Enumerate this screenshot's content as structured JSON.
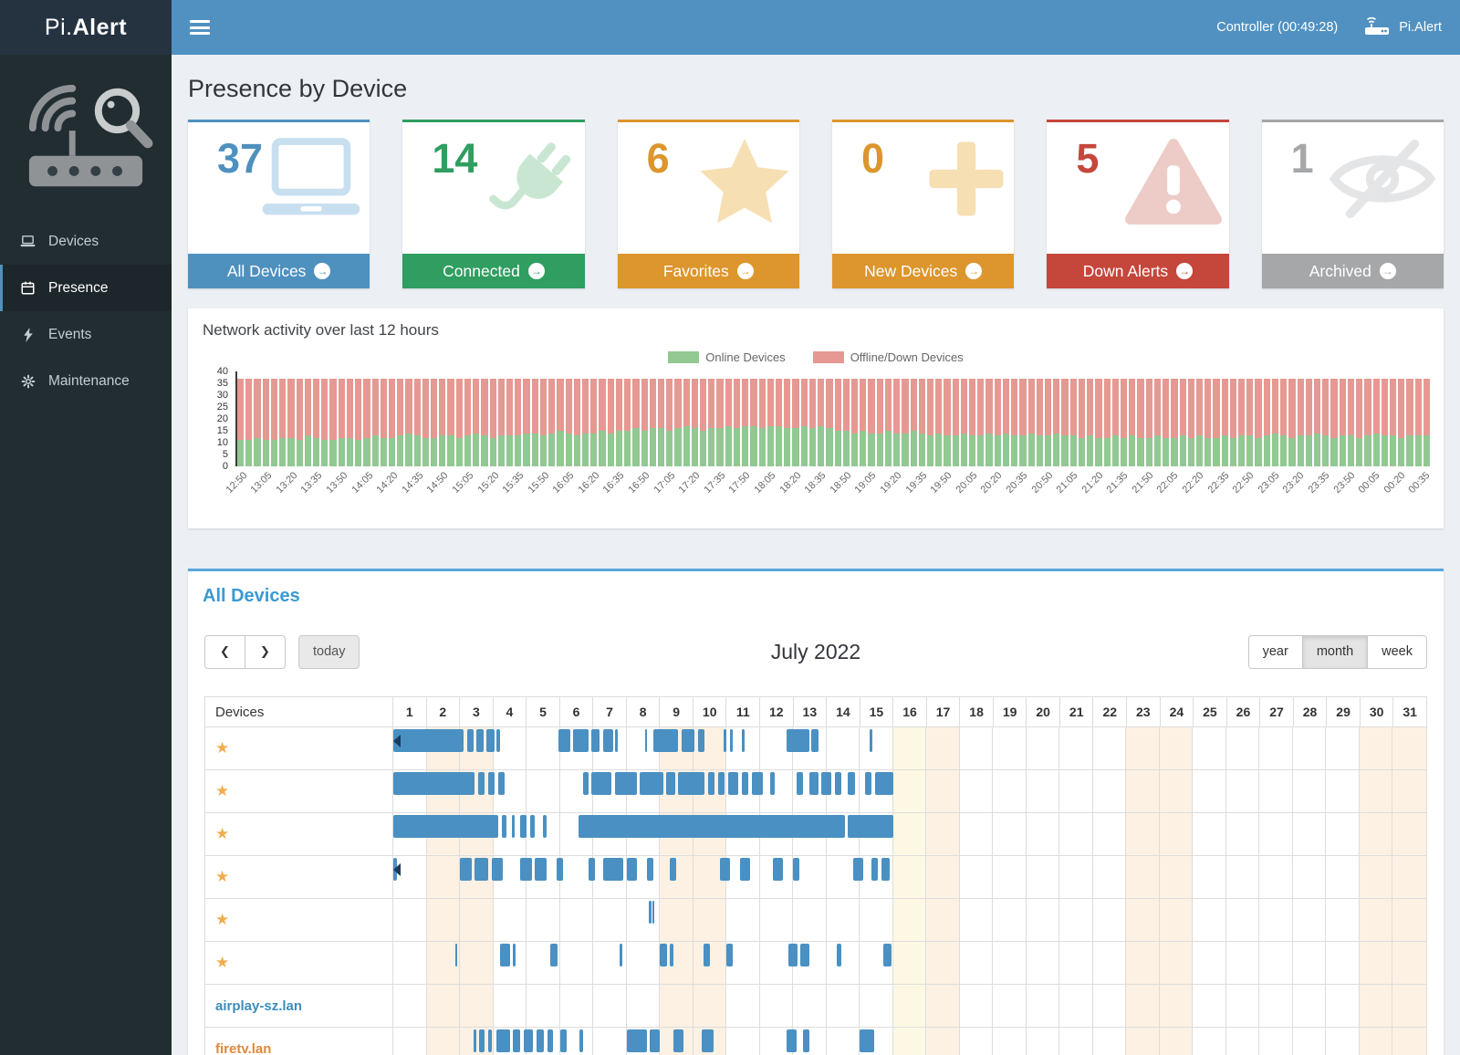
{
  "colors": {
    "header_blue": "#5191c1",
    "logo_dark": "#253341",
    "sidebar_dark": "#222d32",
    "accent_blue": "#4e90be",
    "panel_accent": "#58a6d8",
    "section_title_blue": "#3a9ad2",
    "link_blue": "#3c8dbc",
    "chart_online": "#92c892",
    "chart_offline": "#e59992",
    "weekend_bg": "#fdf1e3",
    "today_bg": "#fcf8e3",
    "presence_bar": "#4a90c2",
    "star_orange": "#f0ad4e"
  },
  "header": {
    "logo_prefix": "Pi.",
    "logo_suffix": "Alert",
    "controller_status": "Controller (00:49:28)",
    "brand": "Pi.Alert"
  },
  "sidebar": {
    "items": [
      {
        "label": "Devices",
        "icon": "laptop-icon",
        "active": false
      },
      {
        "label": "Presence",
        "icon": "calendar-icon",
        "active": true
      },
      {
        "label": "Events",
        "icon": "bolt-icon",
        "active": false
      },
      {
        "label": "Maintenance",
        "icon": "gear-icon",
        "active": false
      }
    ]
  },
  "page": {
    "title": "Presence by Device"
  },
  "cards": [
    {
      "value": "37",
      "label": "All Devices",
      "color": "#4e90be",
      "icon": "laptop-icon"
    },
    {
      "value": "14",
      "label": "Connected",
      "color": "#2f9e60",
      "icon": "plug-icon"
    },
    {
      "value": "6",
      "label": "Favorites",
      "color": "#dc962d",
      "icon": "star-icon"
    },
    {
      "value": "0",
      "label": "New Devices",
      "color": "#dc962d",
      "icon": "plus-icon"
    },
    {
      "value": "5",
      "label": "Down Alerts",
      "color": "#c5463a",
      "icon": "warning-icon"
    },
    {
      "value": "1",
      "label": "Archived",
      "color": "#a5a7a9",
      "icon": "eye-slash-icon"
    }
  ],
  "activity": {
    "title": "Network activity over last 12 hours",
    "chart_data": {
      "type": "bar",
      "stacked": true,
      "title": "Network activity over last 12 hours",
      "legend": [
        {
          "name": "Online Devices",
          "color": "#92c892"
        },
        {
          "name": "Offline/Down Devices",
          "color": "#e59992"
        }
      ],
      "ylim": [
        0,
        40
      ],
      "yticks": [
        0,
        5,
        10,
        15,
        20,
        25,
        30,
        35,
        40
      ],
      "interval_minutes": 5,
      "tick_interval_minutes": 15,
      "total_devices": 37,
      "tick_labels": [
        "12:50",
        "13:05",
        "13:20",
        "13:35",
        "13:50",
        "14:05",
        "14:20",
        "14:35",
        "14:50",
        "15:05",
        "15:20",
        "15:35",
        "15:50",
        "16:05",
        "16:20",
        "16:35",
        "16:50",
        "17:05",
        "17:20",
        "17:35",
        "17:50",
        "18:05",
        "18:20",
        "18:35",
        "18:50",
        "19:05",
        "19:20",
        "19:35",
        "19:50",
        "20:05",
        "20:20",
        "20:35",
        "20:50",
        "21:05",
        "21:20",
        "21:35",
        "21:50",
        "22:05",
        "22:20",
        "22:35",
        "22:50",
        "23:05",
        "23:20",
        "23:35",
        "23:50",
        "00:05",
        "00:20",
        "00:35"
      ],
      "series": [
        {
          "name": "Online Devices",
          "values": [
            11,
            11,
            12,
            11,
            11,
            12,
            12,
            11,
            13,
            12,
            11,
            11,
            12,
            12,
            11,
            12,
            13,
            12,
            12,
            13,
            14,
            13,
            12,
            12,
            13,
            13,
            12,
            13,
            14,
            13,
            12,
            13,
            13,
            13,
            14,
            14,
            13,
            14,
            15,
            14,
            13,
            14,
            14,
            15,
            14,
            15,
            15,
            16,
            15,
            16,
            16,
            15,
            16,
            17,
            16,
            15,
            16,
            16,
            17,
            16,
            17,
            17,
            16,
            17,
            17,
            16,
            16,
            17,
            16,
            17,
            16,
            15,
            15,
            14,
            15,
            14,
            14,
            15,
            14,
            14,
            15,
            14,
            13,
            14,
            13,
            13,
            14,
            13,
            13,
            14,
            13,
            14,
            13,
            13,
            14,
            13,
            13,
            14,
            13,
            13,
            12,
            13,
            12,
            12,
            13,
            12,
            13,
            12,
            12,
            13,
            12,
            12,
            13,
            12,
            13,
            12,
            12,
            13,
            12,
            13,
            13,
            12,
            13,
            14,
            13,
            12,
            13,
            13,
            14,
            13,
            12,
            13,
            13,
            12,
            13,
            14,
            13,
            13,
            12,
            13,
            13,
            13
          ]
        },
        {
          "name": "Offline/Down Devices",
          "values": [
            26,
            26,
            25,
            26,
            26,
            25,
            25,
            26,
            24,
            25,
            26,
            26,
            25,
            25,
            26,
            25,
            24,
            25,
            25,
            24,
            23,
            24,
            25,
            25,
            24,
            24,
            25,
            24,
            23,
            24,
            25,
            24,
            24,
            24,
            23,
            23,
            24,
            23,
            22,
            23,
            24,
            23,
            23,
            22,
            23,
            22,
            22,
            21,
            22,
            21,
            21,
            22,
            21,
            20,
            21,
            22,
            21,
            21,
            20,
            21,
            20,
            20,
            21,
            20,
            20,
            21,
            21,
            20,
            21,
            20,
            21,
            22,
            22,
            23,
            22,
            23,
            23,
            22,
            23,
            23,
            22,
            23,
            24,
            23,
            24,
            24,
            23,
            24,
            24,
            23,
            24,
            23,
            24,
            24,
            23,
            24,
            24,
            23,
            24,
            24,
            25,
            24,
            25,
            25,
            24,
            25,
            24,
            25,
            25,
            24,
            25,
            25,
            24,
            25,
            24,
            25,
            25,
            24,
            25,
            24,
            24,
            25,
            24,
            23,
            24,
            25,
            24,
            24,
            23,
            24,
            25,
            24,
            24,
            25,
            24,
            23,
            24,
            24,
            25,
            24,
            24,
            24
          ]
        }
      ]
    }
  },
  "calendar": {
    "section_title": "All Devices",
    "toolbar": {
      "prev_icon": "❮",
      "next_icon": "❯",
      "today": "today",
      "title": "July 2022",
      "views": [
        "year",
        "month",
        "week"
      ],
      "active_view": "month"
    },
    "table": {
      "devices_header": "Devices",
      "days": [
        1,
        2,
        3,
        4,
        5,
        6,
        7,
        8,
        9,
        10,
        11,
        12,
        13,
        14,
        15,
        16,
        17,
        18,
        19,
        20,
        21,
        22,
        23,
        24,
        25,
        26,
        27,
        28,
        29,
        30,
        31
      ],
      "weekend_days": [
        2,
        3,
        9,
        10,
        16,
        17,
        23,
        24,
        30,
        31
      ],
      "today_day": 16
    },
    "rows": [
      {
        "star": true,
        "name": "",
        "continues_before": true,
        "segments": [
          [
            1.0,
            3.1
          ],
          [
            3.22,
            3.42
          ],
          [
            3.5,
            3.72
          ],
          [
            3.8,
            4.05
          ],
          [
            4.1,
            4.2
          ],
          [
            5.95,
            6.3
          ],
          [
            6.4,
            6.85
          ],
          [
            6.95,
            7.2
          ],
          [
            7.3,
            7.6
          ],
          [
            7.65,
            7.75
          ],
          [
            8.55,
            8.62
          ],
          [
            8.8,
            9.55
          ],
          [
            9.65,
            10.05
          ],
          [
            10.15,
            10.35
          ],
          [
            10.9,
            11.0
          ],
          [
            11.1,
            11.2
          ],
          [
            11.45,
            11.55
          ],
          [
            12.8,
            13.5
          ],
          [
            13.55,
            13.75
          ],
          [
            15.3,
            15.38
          ]
        ]
      },
      {
        "star": true,
        "name": "",
        "continues_before": false,
        "segments": [
          [
            1.0,
            3.45
          ],
          [
            3.55,
            3.75
          ],
          [
            3.85,
            4.05
          ],
          [
            4.15,
            4.35
          ],
          [
            6.7,
            6.85
          ],
          [
            6.95,
            7.55
          ],
          [
            7.65,
            8.3
          ],
          [
            8.4,
            9.1
          ],
          [
            9.2,
            9.45
          ],
          [
            9.55,
            10.35
          ],
          [
            10.45,
            10.65
          ],
          [
            10.75,
            10.95
          ],
          [
            11.05,
            11.35
          ],
          [
            11.45,
            11.65
          ],
          [
            11.75,
            12.1
          ],
          [
            12.3,
            12.45
          ],
          [
            13.1,
            13.3
          ],
          [
            13.5,
            13.75
          ],
          [
            13.85,
            14.15
          ],
          [
            14.25,
            14.45
          ],
          [
            14.65,
            14.85
          ],
          [
            15.15,
            15.35
          ],
          [
            15.45,
            16.0
          ]
        ]
      },
      {
        "star": true,
        "name": "",
        "continues_before": false,
        "segments": [
          [
            1.0,
            4.15
          ],
          [
            4.25,
            4.4
          ],
          [
            4.55,
            4.65
          ],
          [
            4.8,
            5.0
          ],
          [
            5.1,
            5.25
          ],
          [
            5.5,
            5.6
          ],
          [
            6.55,
            14.55
          ],
          [
            14.65,
            16.0
          ]
        ]
      },
      {
        "star": true,
        "name": "",
        "continues_before": true,
        "segments": [
          [
            1.0,
            1.12
          ],
          [
            3.0,
            3.35
          ],
          [
            3.45,
            3.85
          ],
          [
            3.95,
            4.3
          ],
          [
            4.8,
            5.15
          ],
          [
            5.25,
            5.6
          ],
          [
            5.9,
            6.1
          ],
          [
            6.85,
            7.05
          ],
          [
            7.3,
            7.9
          ],
          [
            8.0,
            8.3
          ],
          [
            8.6,
            8.8
          ],
          [
            9.3,
            9.5
          ],
          [
            10.8,
            11.1
          ],
          [
            11.4,
            11.7
          ],
          [
            12.4,
            12.7
          ],
          [
            13.0,
            13.2
          ],
          [
            14.8,
            15.1
          ],
          [
            15.35,
            15.55
          ],
          [
            15.65,
            15.9
          ]
        ]
      },
      {
        "star": true,
        "name": "",
        "continues_before": false,
        "segments": [
          [
            8.68,
            8.74
          ],
          [
            8.79,
            8.84
          ]
        ]
      },
      {
        "star": true,
        "name": "",
        "continues_before": false,
        "segments": [
          [
            2.86,
            2.93
          ],
          [
            4.2,
            4.5
          ],
          [
            4.58,
            4.68
          ],
          [
            5.7,
            5.92
          ],
          [
            7.8,
            7.87
          ],
          [
            9.0,
            9.22
          ],
          [
            9.3,
            9.42
          ],
          [
            10.32,
            10.5
          ],
          [
            11.0,
            11.2
          ],
          [
            12.85,
            13.12
          ],
          [
            13.22,
            13.5
          ],
          [
            14.3,
            14.46
          ],
          [
            15.7,
            15.95
          ]
        ]
      },
      {
        "star": false,
        "name": "airplay-sz.lan",
        "name_color": "#3c8dbc",
        "continues_before": false,
        "segments": []
      },
      {
        "star": false,
        "name": "firetv.lan",
        "name_color": "#dd8a3d",
        "continues_before": false,
        "segments": [
          [
            3.4,
            3.5
          ],
          [
            3.58,
            3.74
          ],
          [
            3.84,
            3.96
          ],
          [
            4.1,
            4.5
          ],
          [
            4.6,
            4.82
          ],
          [
            4.92,
            5.2
          ],
          [
            5.3,
            5.52
          ],
          [
            5.62,
            5.8
          ],
          [
            6.0,
            6.2
          ],
          [
            6.6,
            6.7
          ],
          [
            8.0,
            8.6
          ],
          [
            8.7,
            9.0
          ],
          [
            9.4,
            9.7
          ],
          [
            10.25,
            10.6
          ],
          [
            12.8,
            13.1
          ],
          [
            13.3,
            13.5
          ],
          [
            15.0,
            15.42
          ]
        ]
      }
    ]
  }
}
